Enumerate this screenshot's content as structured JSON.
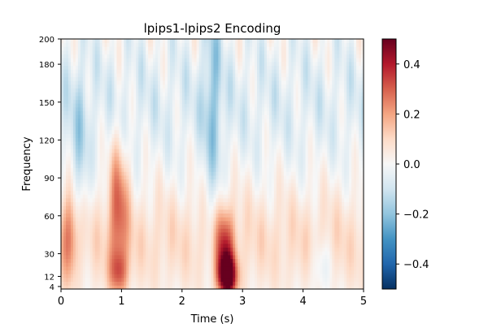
{
  "chart_data": {
    "type": "heatmap",
    "title": "lpips1-lpips2 Encoding",
    "xlabel": "Time (s)",
    "ylabel": "Frequency",
    "xlim": [
      0,
      5
    ],
    "ylim": [
      2,
      200
    ],
    "x_ticks": [
      0,
      1,
      2,
      3,
      4,
      5
    ],
    "x_tick_labels": [
      "0",
      "1",
      "2",
      "3",
      "4",
      "5"
    ],
    "y_ticks": [
      4,
      12,
      30,
      60,
      90,
      120,
      150,
      180,
      200
    ],
    "y_tick_labels": [
      "4",
      "12",
      "30",
      "60",
      "90",
      "120",
      "150",
      "180",
      "200"
    ],
    "colormap": "RdBu_r",
    "colorbar": {
      "vmin": -0.5,
      "vmax": 0.5,
      "ticks": [
        -0.4,
        -0.2,
        0.0,
        0.2,
        0.4
      ],
      "tick_labels": [
        "−0.4",
        "−0.2",
        "0.0",
        "0.2",
        "0.4"
      ]
    },
    "notable_regions": [
      {
        "time": 2.75,
        "frequency": 12,
        "value": 0.5
      },
      {
        "time": 2.7,
        "frequency": 35,
        "value": 0.3
      },
      {
        "time": 0.95,
        "frequency": 15,
        "value": 0.2
      },
      {
        "time": 0.95,
        "frequency": 70,
        "value": 0.25
      },
      {
        "time": 0.15,
        "frequency": 45,
        "value": 0.2
      },
      {
        "time": 2.5,
        "frequency": 150,
        "value": -0.15
      },
      {
        "time": 0.3,
        "frequency": 100,
        "value": -0.12
      },
      {
        "time": 4.3,
        "frequency": 20,
        "value": -0.1
      }
    ]
  }
}
